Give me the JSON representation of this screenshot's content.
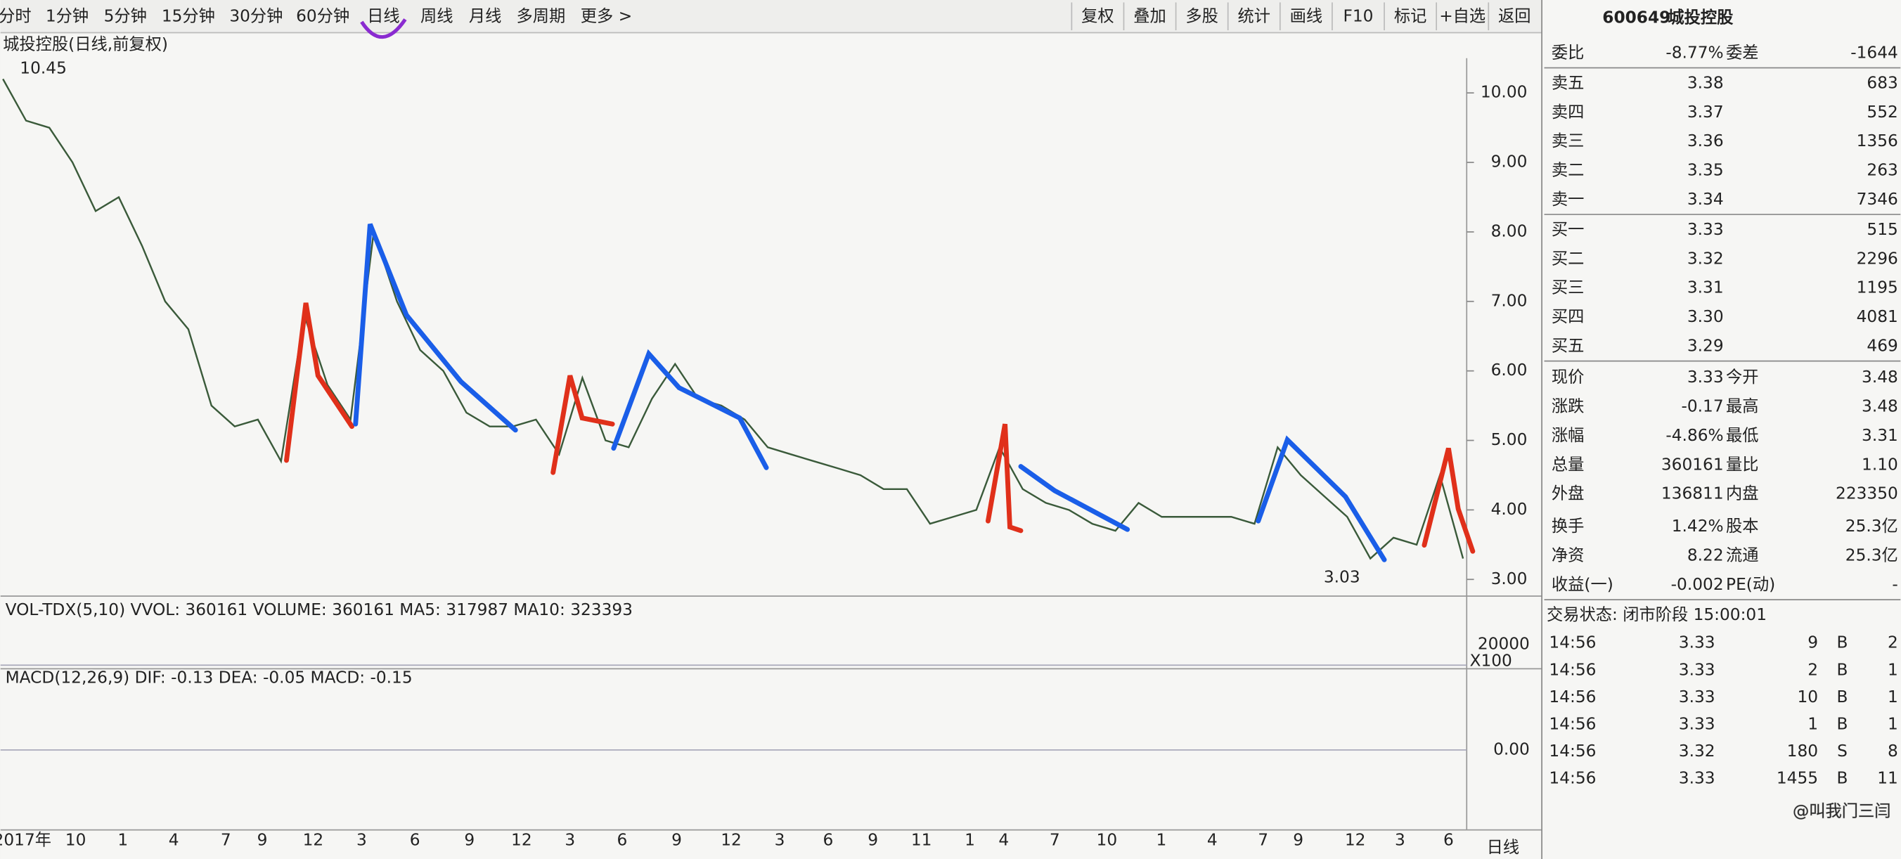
{
  "toolbar": {
    "periods": [
      "分时",
      "1分钟",
      "5分钟",
      "15分钟",
      "30分钟",
      "60分钟",
      "日线",
      "周线",
      "月线",
      "多周期",
      "更多 >"
    ],
    "buttons": [
      "复权",
      "叠加",
      "多股",
      "统计",
      "画线",
      "F10",
      "标记",
      "+自选",
      "返回"
    ]
  },
  "price_chart": {
    "title": "城投控股(日线,前复权)",
    "high_label": "10.45",
    "low_label": "3.03",
    "ylim": [
      2.76,
      10.5
    ],
    "yticks": [
      {
        "value": 3,
        "label": "3.00"
      },
      {
        "value": 4,
        "label": "4.00"
      },
      {
        "value": 5,
        "label": "5.00"
      },
      {
        "value": 6,
        "label": "6.00"
      },
      {
        "value": 7,
        "label": "7.00"
      },
      {
        "value": 8,
        "label": "8.00"
      },
      {
        "value": 9,
        "label": "9.00"
      },
      {
        "value": 10,
        "label": "10.00"
      }
    ],
    "closes": [
      10.2,
      9.6,
      9.5,
      9.0,
      8.3,
      8.5,
      7.8,
      7.0,
      6.6,
      5.5,
      5.2,
      5.3,
      4.7,
      6.8,
      5.8,
      5.3,
      8.0,
      7.0,
      6.3,
      6.0,
      5.4,
      5.2,
      5.2,
      5.3,
      4.8,
      5.9,
      5.0,
      4.9,
      5.6,
      6.1,
      5.6,
      5.5,
      5.3,
      4.9,
      4.8,
      4.7,
      4.6,
      4.5,
      4.3,
      4.3,
      3.8,
      3.9,
      4.0,
      4.9,
      4.3,
      4.1,
      4.0,
      3.8,
      3.7,
      4.1,
      3.9,
      3.9,
      3.9,
      3.9,
      3.8,
      4.9,
      4.5,
      4.2,
      3.9,
      3.3,
      3.6,
      3.5,
      4.5,
      3.3
    ]
  },
  "volume_panel": {
    "label": "VOL-TDX(5,10) VVOL: 360161 VOLUME: 360161 MA5: 317987 MA10: 323393",
    "axis_label": "20000",
    "unit": "X100"
  },
  "macd_panel": {
    "label": "MACD(12,26,9) DIF: -0.13 DEA: -0.05 MACD: -0.15",
    "axis_label": "0.00"
  },
  "date_labels": [
    "2017年",
    "10",
    "1",
    "4",
    "7",
    "9",
    "12",
    "3",
    "6",
    "9",
    "12",
    "3",
    "6",
    "9",
    "12",
    "3",
    "6",
    "9",
    "11",
    "1",
    "4",
    "7",
    "10",
    "1",
    "4",
    "7",
    "9",
    "12",
    "3",
    "6"
  ],
  "period_label": "日线",
  "quote_panel": {
    "code": "600649",
    "name": "城投控股",
    "ratio": [
      "委比",
      "-8.77%",
      "委差",
      "-1644"
    ],
    "asks": [
      [
        "卖五",
        "3.38",
        "683"
      ],
      [
        "卖四",
        "3.37",
        "552"
      ],
      [
        "卖三",
        "3.36",
        "1356"
      ],
      [
        "卖二",
        "3.35",
        "263"
      ],
      [
        "卖一",
        "3.34",
        "7346"
      ]
    ],
    "bids": [
      [
        "买一",
        "3.33",
        "515"
      ],
      [
        "买二",
        "3.32",
        "2296"
      ],
      [
        "买三",
        "3.31",
        "1195"
      ],
      [
        "买四",
        "3.30",
        "4081"
      ],
      [
        "买五",
        "3.29",
        "469"
      ]
    ],
    "stats": [
      [
        "现价",
        "3.33",
        "今开",
        "3.48"
      ],
      [
        "涨跌",
        "-0.17",
        "最高",
        "3.48"
      ],
      [
        "涨幅",
        "-4.86%",
        "最低",
        "3.31"
      ],
      [
        "总量",
        "360161",
        "量比",
        "1.10"
      ],
      [
        "外盘",
        "136811",
        "内盘",
        "223350"
      ],
      [
        "换手",
        "1.42%",
        "股本",
        "25.3亿"
      ],
      [
        "净资",
        "8.22",
        "流通",
        "25.3亿"
      ],
      [
        "收益(一)",
        "-0.002",
        "PE(动)",
        "-"
      ]
    ],
    "status": "交易状态: 闭市阶段 15:00:01",
    "trades": [
      [
        "14:56",
        "3.33",
        "9",
        "B",
        "2"
      ],
      [
        "14:56",
        "3.33",
        "2",
        "B",
        "1"
      ],
      [
        "14:56",
        "3.33",
        "10",
        "B",
        "1"
      ],
      [
        "14:56",
        "3.33",
        "1",
        "B",
        "1"
      ],
      [
        "14:56",
        "3.32",
        "180",
        "S",
        "8"
      ],
      [
        "14:56",
        "3.33",
        "1455",
        "B",
        "11"
      ]
    ]
  },
  "watermark": "@叫我门三闫"
}
